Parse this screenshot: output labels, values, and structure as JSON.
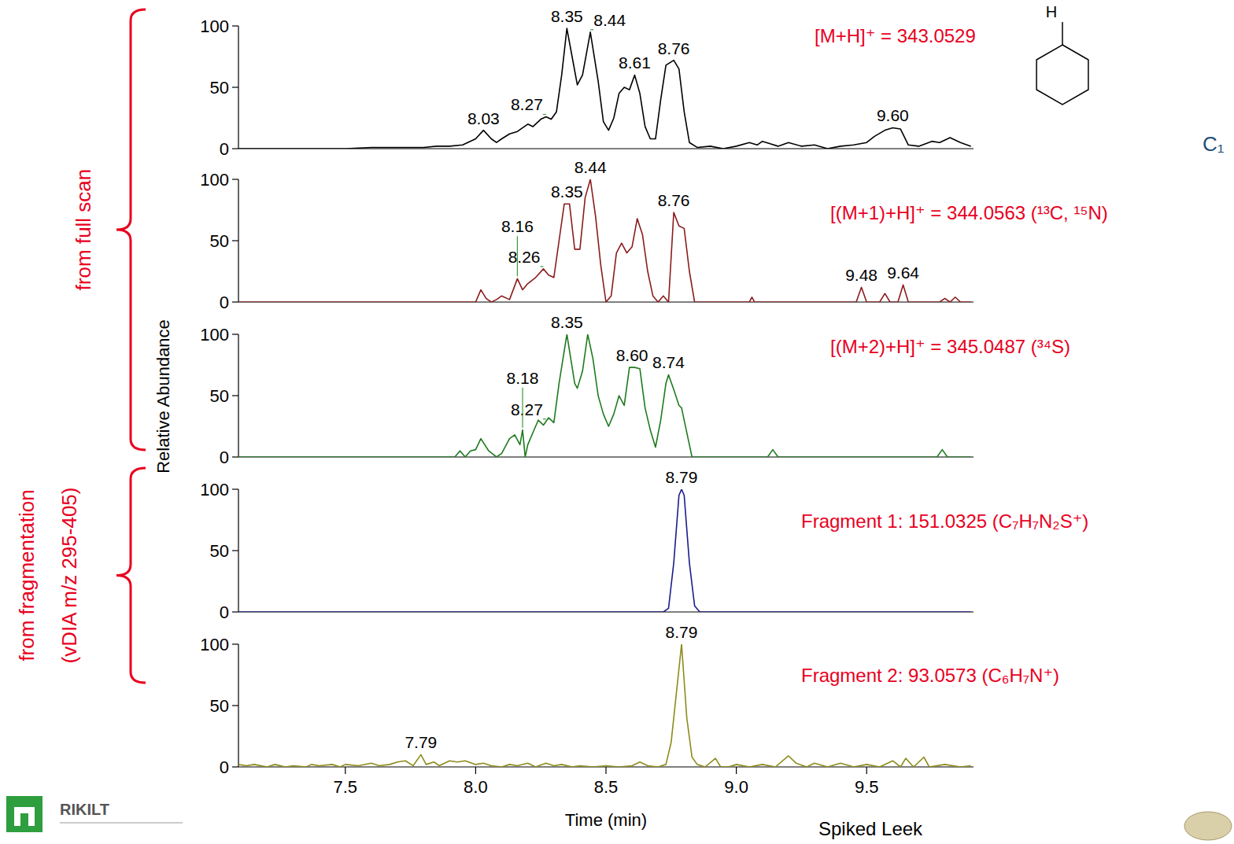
{
  "chart_data": [
    {
      "type": "line",
      "tick_labels": "y",
      "xlim": [
        7.09,
        9.91
      ],
      "ylim": [
        0,
        100
      ],
      "yticks": [
        0,
        50,
        100
      ],
      "x": [
        7.09,
        7.5,
        7.6,
        7.7,
        7.8,
        7.85,
        7.9,
        7.95,
        8.0,
        8.03,
        8.06,
        8.08,
        8.1,
        8.13,
        8.16,
        8.2,
        8.22,
        8.25,
        8.27,
        8.29,
        8.31,
        8.33,
        8.35,
        8.37,
        8.39,
        8.41,
        8.44,
        8.47,
        8.49,
        8.51,
        8.53,
        8.55,
        8.57,
        8.59,
        8.61,
        8.63,
        8.65,
        8.67,
        8.69,
        8.71,
        8.73,
        8.76,
        8.78,
        8.8,
        8.82,
        8.85,
        8.9,
        8.95,
        9.0,
        9.05,
        9.08,
        9.1,
        9.13,
        9.16,
        9.2,
        9.25,
        9.3,
        9.35,
        9.4,
        9.45,
        9.5,
        9.53,
        9.57,
        9.6,
        9.63,
        9.66,
        9.7,
        9.75,
        9.78,
        9.82,
        9.86,
        9.9
      ],
      "series": [
        {
          "name": "[M+H]⁺ = 343.0529",
          "color": "#000000",
          "values": [
            0,
            0,
            1,
            1,
            1,
            2,
            2,
            3,
            8,
            15,
            8,
            5,
            8,
            12,
            14,
            20,
            18,
            24,
            26,
            24,
            30,
            60,
            98,
            75,
            52,
            60,
            95,
            55,
            22,
            15,
            25,
            45,
            50,
            48,
            60,
            45,
            18,
            8,
            8,
            40,
            68,
            72,
            65,
            30,
            5,
            1,
            2,
            0,
            2,
            5,
            3,
            6,
            4,
            2,
            5,
            2,
            3,
            0,
            2,
            3,
            5,
            10,
            15,
            17,
            16,
            3,
            2,
            6,
            5,
            9,
            5,
            2
          ]
        }
      ],
      "annotations": [
        {
          "x": 8.03,
          "y": 15,
          "label": "8.03"
        },
        {
          "x": 8.27,
          "y": 26,
          "label": "8.27"
        },
        {
          "x": 8.35,
          "y": 98,
          "label": "8.35"
        },
        {
          "x": 8.44,
          "y": 95,
          "label": "8.44"
        },
        {
          "x": 8.61,
          "y": 60,
          "label": "8.61"
        },
        {
          "x": 8.76,
          "y": 72,
          "label": "8.76"
        },
        {
          "x": 9.6,
          "y": 17,
          "label": "9.60"
        }
      ]
    },
    {
      "type": "line",
      "tick_labels": "y",
      "xlim": [
        7.09,
        9.91
      ],
      "ylim": [
        0,
        100
      ],
      "yticks": [
        0,
        50,
        100
      ],
      "x": [
        7.09,
        8.0,
        8.02,
        8.04,
        8.06,
        8.08,
        8.1,
        8.13,
        8.16,
        8.18,
        8.2,
        8.23,
        8.26,
        8.28,
        8.3,
        8.32,
        8.34,
        8.36,
        8.38,
        8.4,
        8.42,
        8.44,
        8.46,
        8.48,
        8.5,
        8.52,
        8.54,
        8.56,
        8.58,
        8.6,
        8.62,
        8.64,
        8.66,
        8.68,
        8.7,
        8.72,
        8.74,
        8.76,
        8.78,
        8.8,
        8.82,
        8.84,
        9.05,
        9.06,
        9.07,
        9.46,
        9.48,
        9.5,
        9.55,
        9.57,
        9.59,
        9.62,
        9.64,
        9.66,
        9.78,
        9.8,
        9.82,
        9.84,
        9.86,
        9.9
      ],
      "series": [
        {
          "name": "[(M+1)+H]⁺ = 344.0563 (¹³C, ¹⁵N)",
          "color": "#8b1c1c",
          "values": [
            0,
            0,
            10,
            3,
            0,
            2,
            5,
            2,
            19,
            10,
            15,
            20,
            27,
            22,
            20,
            50,
            80,
            80,
            43,
            43,
            85,
            100,
            70,
            30,
            0,
            5,
            40,
            48,
            40,
            45,
            68,
            55,
            25,
            5,
            0,
            5,
            0,
            73,
            62,
            60,
            25,
            0,
            0,
            4,
            0,
            0,
            12,
            0,
            0,
            7,
            0,
            0,
            14,
            0,
            0,
            3,
            0,
            4,
            0,
            0
          ]
        }
      ],
      "annotations": [
        {
          "x": 8.16,
          "y": 19,
          "label": "8.16"
        },
        {
          "x": 8.26,
          "y": 27,
          "label": "8.26"
        },
        {
          "x": 8.35,
          "y": 80,
          "label": "8.35"
        },
        {
          "x": 8.44,
          "y": 100,
          "label": "8.44"
        },
        {
          "x": 8.76,
          "y": 73,
          "label": "8.76"
        },
        {
          "x": 9.48,
          "y": 12,
          "label": "9.48"
        },
        {
          "x": 9.64,
          "y": 14,
          "label": "9.64"
        }
      ]
    },
    {
      "type": "line",
      "tick_labels": "y",
      "xlim": [
        7.09,
        9.91
      ],
      "ylim": [
        0,
        100
      ],
      "yticks": [
        0,
        50,
        100
      ],
      "x": [
        7.09,
        7.92,
        7.94,
        7.96,
        7.98,
        8.0,
        8.02,
        8.05,
        8.08,
        8.1,
        8.13,
        8.15,
        8.17,
        8.18,
        8.19,
        8.2,
        8.22,
        8.24,
        8.26,
        8.28,
        8.3,
        8.32,
        8.35,
        8.38,
        8.39,
        8.41,
        8.43,
        8.45,
        8.47,
        8.49,
        8.51,
        8.53,
        8.55,
        8.57,
        8.59,
        8.61,
        8.63,
        8.65,
        8.67,
        8.69,
        8.71,
        8.73,
        8.74,
        8.76,
        8.78,
        8.79,
        8.81,
        8.83,
        9.12,
        9.14,
        9.16,
        9.77,
        9.79,
        9.81,
        9.9
      ],
      "series": [
        {
          "name": "[(M+2)+H]⁺ = 345.0487 (³⁴S)",
          "color": "#1e7b1e",
          "values": [
            0,
            0,
            5,
            0,
            5,
            6,
            15,
            5,
            0,
            3,
            15,
            18,
            10,
            22,
            0,
            10,
            20,
            30,
            26,
            32,
            28,
            60,
            100,
            60,
            56,
            70,
            100,
            80,
            50,
            35,
            25,
            35,
            50,
            42,
            73,
            73,
            72,
            40,
            22,
            8,
            30,
            60,
            67,
            55,
            42,
            40,
            20,
            0,
            0,
            6,
            0,
            0,
            6,
            0,
            0
          ]
        }
      ],
      "annotations": [
        {
          "x": 8.18,
          "y": 22,
          "label": "8.18"
        },
        {
          "x": 8.27,
          "y": 29,
          "label": "8.27"
        },
        {
          "x": 8.35,
          "y": 100,
          "label": "8.35"
        },
        {
          "x": 8.6,
          "y": 73,
          "label": "8.60"
        },
        {
          "x": 8.74,
          "y": 67,
          "label": "8.74"
        }
      ]
    },
    {
      "type": "line",
      "tick_labels": "y",
      "xlim": [
        7.09,
        9.91
      ],
      "ylim": [
        0,
        100
      ],
      "yticks": [
        0,
        50,
        100
      ],
      "x": [
        7.09,
        8.72,
        8.74,
        8.76,
        8.78,
        8.79,
        8.8,
        8.82,
        8.84,
        8.86,
        9.9
      ],
      "series": [
        {
          "name": "Fragment 1: 151.0325 (C₇H₇N₂S⁺)",
          "color": "#1c1c8c",
          "values": [
            0,
            0,
            3,
            40,
            95,
            100,
            95,
            40,
            5,
            0,
            0
          ]
        }
      ],
      "annotations": [
        {
          "x": 8.79,
          "y": 100,
          "label": "8.79"
        }
      ]
    },
    {
      "type": "line",
      "xlim": [
        7.09,
        9.91
      ],
      "ylim": [
        0,
        100
      ],
      "yticks": [
        0,
        50,
        100
      ],
      "xticks": [
        7.5,
        {
          "value": 8,
          "label": "8.0"
        },
        8.5,
        {
          "value": 9,
          "label": "9.0"
        },
        9.5
      ],
      "x_label": "Time (min)",
      "x": [
        7.09,
        7.12,
        7.15,
        7.2,
        7.23,
        7.27,
        7.3,
        7.35,
        7.37,
        7.4,
        7.45,
        7.48,
        7.5,
        7.55,
        7.6,
        7.63,
        7.67,
        7.7,
        7.73,
        7.76,
        7.79,
        7.81,
        7.84,
        7.86,
        7.9,
        7.93,
        7.96,
        8.0,
        8.03,
        8.06,
        8.1,
        8.13,
        8.16,
        8.2,
        8.23,
        8.27,
        8.3,
        8.33,
        8.37,
        8.4,
        8.45,
        8.5,
        8.55,
        8.6,
        8.63,
        8.66,
        8.7,
        8.73,
        8.75,
        8.77,
        8.79,
        8.81,
        8.83,
        8.85,
        8.88,
        8.92,
        8.94,
        8.97,
        9.0,
        9.05,
        9.1,
        9.15,
        9.2,
        9.23,
        9.27,
        9.3,
        9.35,
        9.4,
        9.45,
        9.5,
        9.55,
        9.6,
        9.63,
        9.65,
        9.68,
        9.72,
        9.74,
        9.8,
        9.86,
        9.9
      ],
      "series": [
        {
          "name": "Fragment 2:  93.0573  (C₆H₇N⁺)",
          "color": "#8c8c1c",
          "values": [
            2,
            1,
            2,
            0,
            2,
            0,
            1,
            0,
            2,
            1,
            2,
            0,
            2,
            1,
            3,
            1,
            2,
            4,
            5,
            1,
            10,
            2,
            4,
            1,
            5,
            4,
            5,
            2,
            3,
            1,
            0,
            2,
            1,
            3,
            0,
            3,
            1,
            2,
            0,
            1,
            0,
            1,
            0,
            1,
            4,
            1,
            0,
            2,
            20,
            60,
            100,
            40,
            8,
            2,
            0,
            7,
            0,
            0,
            2,
            0,
            2,
            0,
            9,
            3,
            0,
            3,
            0,
            3,
            0,
            2,
            0,
            5,
            0,
            7,
            0,
            8,
            0,
            2,
            0,
            1
          ]
        }
      ],
      "annotations": [
        {
          "x": 7.79,
          "y": 10,
          "label": "7.79"
        },
        {
          "x": 8.79,
          "y": 100,
          "label": "8.79"
        }
      ]
    }
  ],
  "figure": {
    "y_label": "Relative Abundance",
    "groups": [
      {
        "lines": [
          "from full scan"
        ]
      },
      {
        "lines": [
          "from fragmentation",
          "(vDIA m/z 295-405)"
        ]
      }
    ],
    "logo": "RIKILT",
    "caption": "Spiked Leek",
    "structure": {
      "atom": "H",
      "formula": "C₁"
    }
  }
}
